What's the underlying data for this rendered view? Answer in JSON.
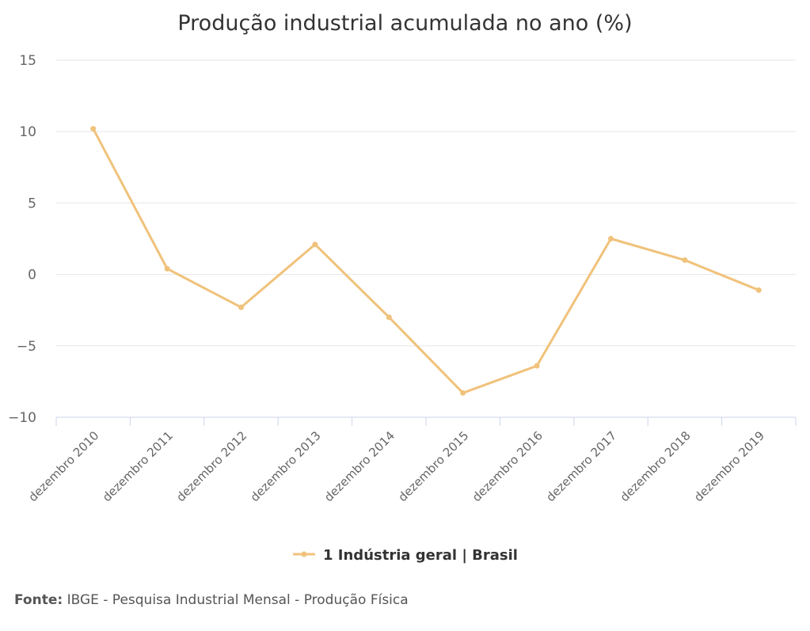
{
  "chart_data": {
    "type": "line",
    "title": "Produção industrial acumulada no ano (%)",
    "xlabel": "",
    "ylabel": "",
    "categories": [
      "dezembro 2010",
      "dezembro 2011",
      "dezembro 2012",
      "dezembro 2013",
      "dezembro 2014",
      "dezembro 2015",
      "dezembro 2016",
      "dezembro 2017",
      "dezembro 2018",
      "dezembro 2019"
    ],
    "series": [
      {
        "name": "1 Indústria geral | Brasil",
        "values": [
          10.2,
          0.4,
          -2.3,
          2.1,
          -3.0,
          -8.3,
          -6.4,
          2.5,
          1.0,
          -1.1
        ],
        "color": "#f0c27b"
      }
    ],
    "ylim": [
      -10,
      15
    ],
    "yticks": [
      15,
      10,
      5,
      0,
      -5,
      -10
    ],
    "ytick_labels": [
      "15",
      "10",
      "5",
      "0",
      "−5",
      "−10"
    ],
    "grid": true,
    "legend_position": "bottom-center"
  },
  "source": {
    "label": "Fonte:",
    "text": " IBGE - Pesquisa Industrial Mensal - Produção Física"
  }
}
